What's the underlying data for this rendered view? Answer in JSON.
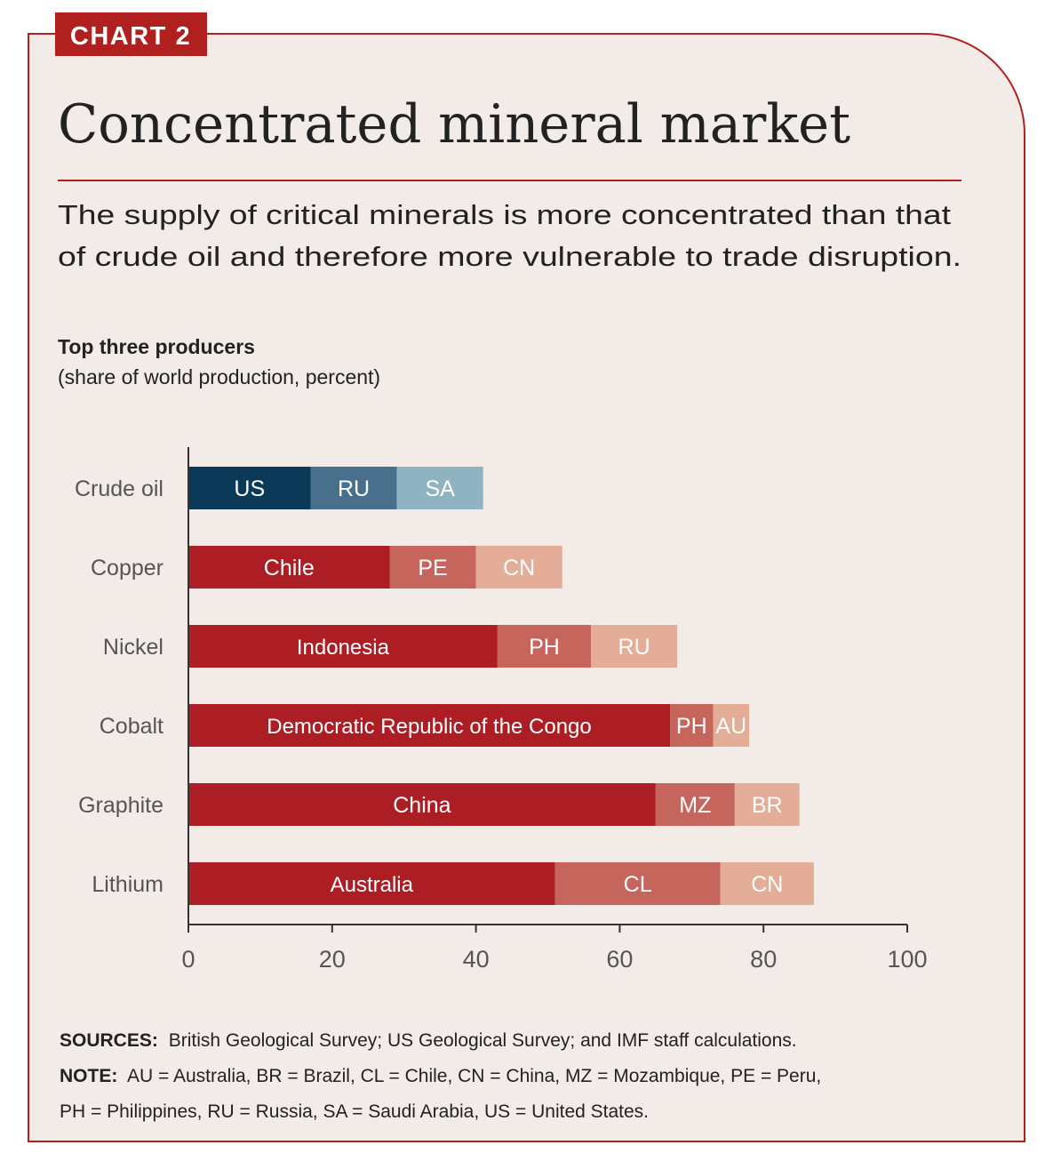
{
  "badge": "CHART 2",
  "title": "Concentrated mineral market",
  "subtitle_lines": [
    "The supply of critical minerals is more concentrated than that",
    "of crude oil and therefore more vulnerable to trade disruption."
  ],
  "colors": {
    "border": "#b0201f",
    "background": "#f3ebe8",
    "oil": [
      "#0b3a59",
      "#48708d",
      "#8fb3c1"
    ],
    "minerals": [
      "#ad1e24",
      "#c5655c",
      "#e3ad98"
    ]
  },
  "chart_data": {
    "type": "bar",
    "orientation": "horizontal",
    "stacked": true,
    "title": "Top three producers",
    "subtitle": "(share of world production, percent)",
    "xlim": [
      0,
      100
    ],
    "xticks": [
      0,
      20,
      40,
      60,
      80,
      100
    ],
    "grid": false,
    "categories": [
      "Crude oil",
      "Copper",
      "Nickel",
      "Cobalt",
      "Graphite",
      "Lithium"
    ],
    "rows": [
      {
        "category": "Crude oil",
        "segments": [
          {
            "label": "US",
            "value": 17
          },
          {
            "label": "RU",
            "value": 12
          },
          {
            "label": "SA",
            "value": 12
          }
        ]
      },
      {
        "category": "Copper",
        "segments": [
          {
            "label": "Chile",
            "value": 28
          },
          {
            "label": "PE",
            "value": 12
          },
          {
            "label": "CN",
            "value": 12
          }
        ]
      },
      {
        "category": "Nickel",
        "segments": [
          {
            "label": "Indonesia",
            "value": 43
          },
          {
            "label": "PH",
            "value": 13
          },
          {
            "label": "RU",
            "value": 12
          }
        ]
      },
      {
        "category": "Cobalt",
        "segments": [
          {
            "label": "Democratic Republic of the Congo",
            "value": 67
          },
          {
            "label": "PH",
            "value": 6
          },
          {
            "label": "AU",
            "value": 5
          }
        ]
      },
      {
        "category": "Graphite",
        "segments": [
          {
            "label": "China",
            "value": 65
          },
          {
            "label": "MZ",
            "value": 11
          },
          {
            "label": "BR",
            "value": 9
          }
        ]
      },
      {
        "category": "Lithium",
        "segments": [
          {
            "label": "Australia",
            "value": 51
          },
          {
            "label": "CL",
            "value": 23
          },
          {
            "label": "CN",
            "value": 13
          }
        ]
      }
    ]
  },
  "footer": {
    "sources_label": "SOURCES:",
    "sources_text": "British Geological Survey; US Geological Survey; and IMF staff calculations.",
    "note_label": "NOTE:",
    "note_line1": "AU = Australia, BR = Brazil, CL = Chile, CN = China, MZ = Mozambique, PE = Peru,",
    "note_line2": "PH = Philippines, RU = Russia, SA = Saudi Arabia, US = United States."
  }
}
